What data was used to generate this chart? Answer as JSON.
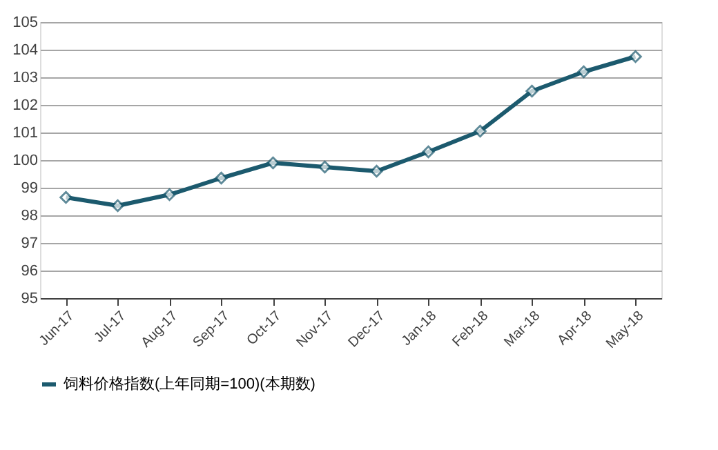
{
  "chart_data": {
    "type": "line",
    "categories": [
      "Jun-17",
      "Jul-17",
      "Aug-17",
      "Sep-17",
      "Oct-17",
      "Nov-17",
      "Dec-17",
      "Jan-18",
      "Feb-18",
      "Mar-18",
      "Apr-18",
      "May-18"
    ],
    "series": [
      {
        "name": "饲料价格指数(上年同期=100)(本期数)",
        "color": "#1c5a6e",
        "values": [
          98.65,
          98.35,
          98.75,
          99.35,
          99.9,
          99.75,
          99.6,
          100.3,
          101.05,
          102.5,
          103.2,
          103.75
        ]
      }
    ],
    "ylim": [
      95,
      105
    ],
    "yticks": [
      95,
      96,
      97,
      98,
      99,
      100,
      101,
      102,
      103,
      104,
      105
    ],
    "grid": "y",
    "legend": "bottom",
    "marker": "diamond",
    "line_style": "solid"
  }
}
